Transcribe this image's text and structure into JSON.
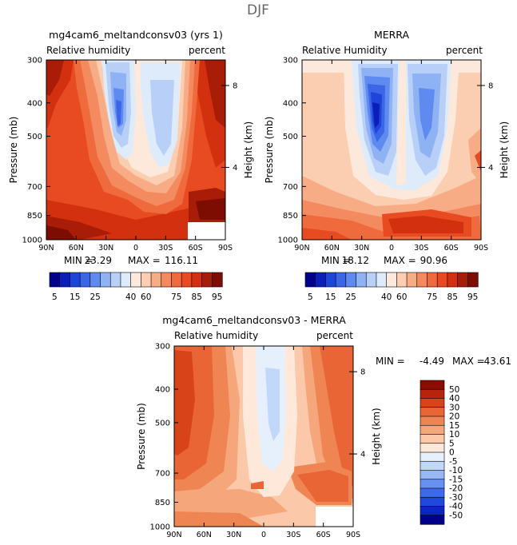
{
  "figure_title": "DJF",
  "colors": {
    "rh_palette": [
      "#00008a",
      "#0b1fb8",
      "#1e45d8",
      "#3b66e8",
      "#5f8aef",
      "#8fb2f5",
      "#b8d0f8",
      "#deebfb",
      "#fde9dc",
      "#fbcdb1",
      "#f8ac86",
      "#f48a5f",
      "#ef6a3d",
      "#e84a22",
      "#d2300f",
      "#a81c08",
      "#7d0c02"
    ],
    "diff_palette": [
      "#00008a",
      "#0b26c2",
      "#1f48de",
      "#3c6aeb",
      "#6790f0",
      "#97b7f6",
      "#c2d8fa",
      "#e6effc",
      "#fde8da",
      "#fbc9a9",
      "#f6a67b",
      "#f08554",
      "#ea6535",
      "#d8431a",
      "#b8240b",
      "#8a0c02"
    ]
  },
  "chart_data": [
    {
      "type": "heatmap",
      "panel": "model",
      "title": "mg4cam6_meltandconsv03 (yrs 1)",
      "subtitle_left": "Relative humidity",
      "subtitle_right": "percent",
      "xlabel": "",
      "ylabel": "Pressure (mb)",
      "y2label": "Height (km)",
      "x_ticks": [
        "90N",
        "60N",
        "30N",
        "0",
        "30S",
        "60S",
        "90S"
      ],
      "y_ticks": [
        "300",
        "400",
        "500",
        "700",
        "850",
        "1000"
      ],
      "y2_ticks": [
        "8",
        "4"
      ],
      "xlim": [
        90,
        -90
      ],
      "ylim_mb": [
        300,
        1000
      ],
      "stats": {
        "min_label": "MIN =",
        "min": "23.29",
        "max_label": "MAX =",
        "max": "116.11"
      },
      "missing_region": "below 60S-90S near surface"
    },
    {
      "type": "heatmap",
      "panel": "obs",
      "title": "MERRA",
      "subtitle_left": "Relative Humidity",
      "subtitle_right": "percent",
      "xlabel": "",
      "ylabel": "Pressure (mb)",
      "y2label": "Height (km)",
      "x_ticks": [
        "90N",
        "60N",
        "30N",
        "0",
        "30S",
        "60S",
        "90S"
      ],
      "y_ticks": [
        "300",
        "400",
        "500",
        "700",
        "850",
        "1000"
      ],
      "y2_ticks": [
        "8",
        "4"
      ],
      "xlim": [
        90,
        -90
      ],
      "ylim_mb": [
        300,
        1000
      ],
      "stats": {
        "min_label": "MIN =",
        "min": "18.12",
        "max_label": "MAX =",
        "max": "90.96"
      }
    },
    {
      "type": "heatmap",
      "panel": "diff",
      "title": "mg4cam6_meltandconsv03 - MERRA",
      "subtitle_left": "Relative humidity",
      "subtitle_right": "percent",
      "xlabel": "",
      "ylabel": "Pressure (mb)",
      "y2label": "Height (km)",
      "x_ticks": [
        "90N",
        "60N",
        "30N",
        "0",
        "30S",
        "60S",
        "90S"
      ],
      "y_ticks": [
        "300",
        "400",
        "500",
        "700",
        "850",
        "1000"
      ],
      "y2_ticks": [
        "8",
        "4"
      ],
      "xlim": [
        90,
        -90
      ],
      "ylim_mb": [
        300,
        1000
      ],
      "stats": {
        "min_label": "MIN =",
        "min": "-4.49",
        "max_label": "MAX =",
        "max": "43.61"
      }
    }
  ],
  "colorbar_rh": {
    "labels": [
      "5",
      "15",
      "25",
      "40",
      "60",
      "75",
      "85",
      "95"
    ],
    "levels": [
      5,
      10,
      15,
      20,
      25,
      30,
      35,
      40,
      50,
      60,
      65,
      70,
      75,
      80,
      85,
      90,
      95
    ]
  },
  "colorbar_diff": {
    "labels": [
      "50",
      "40",
      "30",
      "20",
      "15",
      "10",
      "5",
      "0",
      "-5",
      "-10",
      "-15",
      "-20",
      "-30",
      "-40",
      "-50"
    ]
  }
}
